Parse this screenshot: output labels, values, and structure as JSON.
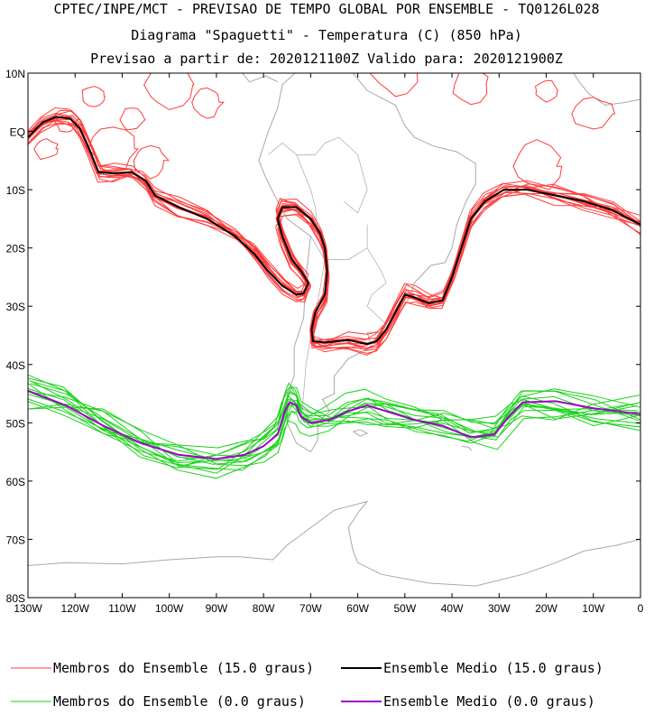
{
  "chart_data": {
    "type": "line",
    "title_lines": [
      "CPTEC/INPE/MCT - PREVISAO DE TEMPO GLOBAL POR ENSEMBLE - TQ0126L028",
      "Diagrama \"Spaguetti\" - Temperatura (C) (850 hPa)",
      "Previsao a partir de: 2020121100Z  Valido para: 2020121900Z"
    ],
    "xlim": [
      -130,
      0
    ],
    "ylim": [
      -80,
      10
    ],
    "x_ticks": [
      {
        "value": -130,
        "label": "130W"
      },
      {
        "value": -120,
        "label": "120W"
      },
      {
        "value": -110,
        "label": "110W"
      },
      {
        "value": -100,
        "label": "100W"
      },
      {
        "value": -90,
        "label": "90W"
      },
      {
        "value": -80,
        "label": "80W"
      },
      {
        "value": -70,
        "label": "70W"
      },
      {
        "value": -60,
        "label": "60W"
      },
      {
        "value": -50,
        "label": "50W"
      },
      {
        "value": -40,
        "label": "40W"
      },
      {
        "value": -30,
        "label": "30W"
      },
      {
        "value": -20,
        "label": "20W"
      },
      {
        "value": -10,
        "label": "10W"
      },
      {
        "value": 0,
        "label": "0"
      }
    ],
    "y_ticks": [
      {
        "value": 10,
        "label": "10N"
      },
      {
        "value": 0,
        "label": "EQ"
      },
      {
        "value": -10,
        "label": "10S"
      },
      {
        "value": -20,
        "label": "20S"
      },
      {
        "value": -30,
        "label": "30S"
      },
      {
        "value": -40,
        "label": "40S"
      },
      {
        "value": -50,
        "label": "50S"
      },
      {
        "value": -60,
        "label": "60S"
      },
      {
        "value": -70,
        "label": "70S"
      },
      {
        "value": -80,
        "label": "80S"
      }
    ],
    "colors": {
      "members_15": "#ff3b3b",
      "mean_15": "#000000",
      "members_0": "#19d219",
      "mean_0": "#a000c8",
      "coast": "#a8a8a8"
    },
    "legend": [
      {
        "key": "members_15",
        "label": "Membros do Ensemble (15.0 graus)"
      },
      {
        "key": "mean_15",
        "label": "Ensemble Medio (15.0 graus)"
      },
      {
        "key": "members_0",
        "label": "Membros do Ensemble (0.0 graus)"
      },
      {
        "key": "mean_0",
        "label": "Ensemble Medio (0.0 graus)"
      }
    ],
    "series": [
      {
        "name": "Ensemble Medio (15.0 graus)",
        "color_key": "mean_15",
        "points": [
          [
            -130,
            -1
          ],
          [
            -127,
            1.5
          ],
          [
            -124,
            2.5
          ],
          [
            -121,
            2.2
          ],
          [
            -119,
            0.5
          ],
          [
            -117,
            -3
          ],
          [
            -115,
            -7
          ],
          [
            -112,
            -7.2
          ],
          [
            -108,
            -7
          ],
          [
            -105,
            -8.5
          ],
          [
            -103,
            -11
          ],
          [
            -98,
            -13
          ],
          [
            -92,
            -15
          ],
          [
            -86,
            -18
          ],
          [
            -82,
            -21
          ],
          [
            -79,
            -24
          ],
          [
            -76,
            -26.5
          ],
          [
            -73,
            -28
          ],
          [
            -71.5,
            -27.8
          ],
          [
            -70.5,
            -26
          ],
          [
            -72,
            -24
          ],
          [
            -74,
            -22
          ],
          [
            -76,
            -18
          ],
          [
            -77,
            -15
          ],
          [
            -76,
            -13
          ],
          [
            -73,
            -13
          ],
          [
            -70,
            -15
          ],
          [
            -68,
            -17.5
          ],
          [
            -67,
            -20
          ],
          [
            -66.5,
            -24
          ],
          [
            -67,
            -28
          ],
          [
            -69,
            -31
          ],
          [
            -69.8,
            -34
          ],
          [
            -69.5,
            -36
          ],
          [
            -67,
            -36.2
          ],
          [
            -62,
            -35.8
          ],
          [
            -58,
            -36.5
          ],
          [
            -56,
            -36
          ],
          [
            -54,
            -34
          ],
          [
            -52,
            -31
          ],
          [
            -50,
            -28
          ],
          [
            -48,
            -28.5
          ],
          [
            -45,
            -29.5
          ],
          [
            -42,
            -29
          ],
          [
            -40,
            -25
          ],
          [
            -38,
            -20
          ],
          [
            -36,
            -15
          ],
          [
            -33,
            -12
          ],
          [
            -29,
            -10
          ],
          [
            -24,
            -10
          ],
          [
            -18,
            -11
          ],
          [
            -12,
            -12
          ],
          [
            -6,
            -13.5
          ],
          [
            0,
            -16
          ]
        ]
      },
      {
        "name": "Ensemble Medio (0.0 graus)",
        "color_key": "mean_0",
        "points": [
          [
            -130,
            -44.5
          ],
          [
            -122,
            -47
          ],
          [
            -114,
            -50.5
          ],
          [
            -106,
            -53.5
          ],
          [
            -98,
            -55.5
          ],
          [
            -90,
            -56.2
          ],
          [
            -84,
            -55.5
          ],
          [
            -80,
            -54
          ],
          [
            -77,
            -52
          ],
          [
            -75.5,
            -48
          ],
          [
            -74.5,
            -46.5
          ],
          [
            -73,
            -47
          ],
          [
            -72,
            -49
          ],
          [
            -70,
            -50
          ],
          [
            -66,
            -49.5
          ],
          [
            -62,
            -48
          ],
          [
            -58,
            -47
          ],
          [
            -54,
            -48
          ],
          [
            -48,
            -49.5
          ],
          [
            -42,
            -50.5
          ],
          [
            -36,
            -52.5
          ],
          [
            -31,
            -52
          ],
          [
            -28,
            -49
          ],
          [
            -25,
            -46.5
          ],
          [
            -18,
            -46.3
          ],
          [
            -10,
            -47.5
          ],
          [
            0,
            -48.5
          ]
        ]
      }
    ],
    "member_count": 14
  }
}
